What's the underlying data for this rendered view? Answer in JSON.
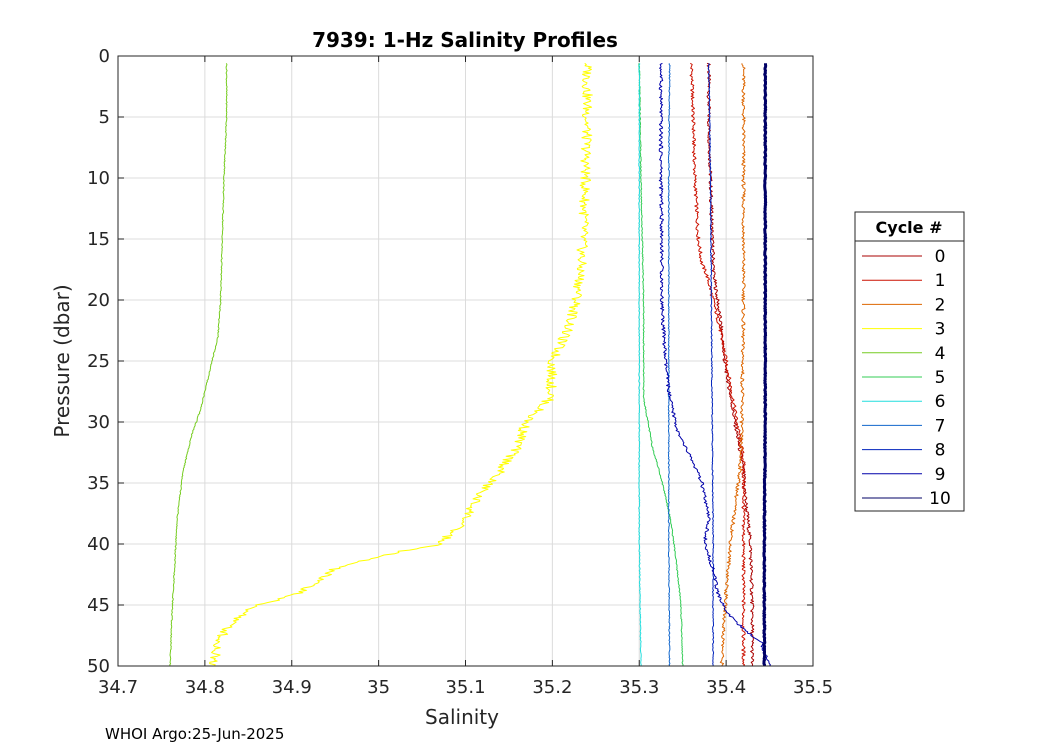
{
  "footer": {
    "credit": "WHOI Argo:25-Jun-2025"
  },
  "chart_data": {
    "type": "line",
    "title": "7939: 1-Hz Salinity Profiles",
    "xlabel": "Salinity",
    "ylabel": "Pressure (dbar)",
    "xlim": [
      34.7,
      35.5
    ],
    "ylim": [
      0,
      50
    ],
    "y_reversed": true,
    "grid": true,
    "xticks": [
      "34.7",
      "34.8",
      "34.9",
      "35",
      "35.1",
      "35.2",
      "35.3",
      "35.4",
      "35.5"
    ],
    "yticks": [
      "0",
      "5",
      "10",
      "15",
      "20",
      "25",
      "30",
      "35",
      "40",
      "45",
      "50"
    ],
    "legend": {
      "title": "Cycle #",
      "placement": "outside-right"
    },
    "series": [
      {
        "name": "0",
        "color": "#aa0000",
        "points": [
          [
            35.38,
            0.6
          ],
          [
            35.38,
            5
          ],
          [
            35.382,
            10
          ],
          [
            35.384,
            15
          ],
          [
            35.386,
            18
          ],
          [
            35.39,
            20
          ],
          [
            35.394,
            22
          ],
          [
            35.398,
            25
          ],
          [
            35.403,
            27
          ],
          [
            35.41,
            30
          ],
          [
            35.415,
            32
          ],
          [
            35.42,
            34
          ],
          [
            35.422,
            36
          ],
          [
            35.425,
            38
          ],
          [
            35.428,
            40
          ],
          [
            35.43,
            45
          ],
          [
            35.43,
            50
          ]
        ]
      },
      {
        "name": "1",
        "color": "#cc1100",
        "points": [
          [
            35.36,
            0.6
          ],
          [
            35.362,
            5
          ],
          [
            35.364,
            10
          ],
          [
            35.368,
            15
          ],
          [
            35.372,
            17
          ],
          [
            35.378,
            18
          ],
          [
            35.385,
            20
          ],
          [
            35.392,
            22
          ],
          [
            35.4,
            25
          ],
          [
            35.405,
            27
          ],
          [
            35.41,
            29
          ],
          [
            35.415,
            31
          ],
          [
            35.42,
            33
          ],
          [
            35.42,
            36
          ],
          [
            35.42,
            40
          ],
          [
            35.42,
            44
          ],
          [
            35.42,
            50
          ]
        ]
      },
      {
        "name": "2",
        "color": "#dd6600",
        "points": [
          [
            35.42,
            0.6
          ],
          [
            35.42,
            10
          ],
          [
            35.42,
            20
          ],
          [
            35.418,
            30
          ],
          [
            35.416,
            34
          ],
          [
            35.41,
            37
          ],
          [
            35.405,
            40
          ],
          [
            35.4,
            44
          ],
          [
            35.397,
            47
          ],
          [
            35.395,
            50
          ]
        ]
      },
      {
        "name": "3",
        "color": "#ffff00",
        "points": [
          [
            35.24,
            0.6
          ],
          [
            35.24,
            5
          ],
          [
            35.238,
            10
          ],
          [
            35.236,
            14
          ],
          [
            35.232,
            18
          ],
          [
            35.228,
            20
          ],
          [
            35.22,
            22
          ],
          [
            35.2,
            25
          ],
          [
            35.198,
            28
          ],
          [
            35.17,
            30
          ],
          [
            35.16,
            32
          ],
          [
            35.14,
            34
          ],
          [
            35.115,
            36
          ],
          [
            35.1,
            38
          ],
          [
            35.07,
            40
          ],
          [
            35.0,
            41
          ],
          [
            34.95,
            42
          ],
          [
            34.91,
            44
          ],
          [
            34.86,
            45
          ],
          [
            34.83,
            46.5
          ],
          [
            34.815,
            48
          ],
          [
            34.81,
            50
          ]
        ]
      },
      {
        "name": "4",
        "color": "#77cc22",
        "points": [
          [
            34.825,
            0.6
          ],
          [
            34.825,
            5
          ],
          [
            34.822,
            10
          ],
          [
            34.82,
            15
          ],
          [
            34.818,
            20
          ],
          [
            34.815,
            23
          ],
          [
            34.805,
            26
          ],
          [
            34.795,
            29
          ],
          [
            34.785,
            31
          ],
          [
            34.775,
            34
          ],
          [
            34.768,
            38
          ],
          [
            34.765,
            42
          ],
          [
            34.762,
            46
          ],
          [
            34.76,
            50
          ]
        ]
      },
      {
        "name": "5",
        "color": "#33cc55",
        "points": [
          [
            35.3,
            0.6
          ],
          [
            35.302,
            10
          ],
          [
            35.305,
            20
          ],
          [
            35.305,
            28
          ],
          [
            35.31,
            30
          ],
          [
            35.315,
            32
          ],
          [
            35.323,
            34
          ],
          [
            35.33,
            36
          ],
          [
            35.336,
            38
          ],
          [
            35.34,
            40
          ],
          [
            35.345,
            43
          ],
          [
            35.348,
            45
          ],
          [
            35.35,
            50
          ]
        ]
      },
      {
        "name": "6",
        "color": "#22dddd",
        "points": [
          [
            35.3,
            0.6
          ],
          [
            35.3,
            10
          ],
          [
            35.3,
            20
          ],
          [
            35.3,
            30
          ],
          [
            35.3,
            40
          ],
          [
            35.302,
            50
          ]
        ]
      },
      {
        "name": "7",
        "color": "#1166cc",
        "points": [
          [
            35.335,
            0.6
          ],
          [
            35.334,
            10
          ],
          [
            35.334,
            20
          ],
          [
            35.334,
            30
          ],
          [
            35.334,
            40
          ],
          [
            35.335,
            50
          ]
        ]
      },
      {
        "name": "8",
        "color": "#0022bb",
        "points": [
          [
            35.38,
            0.6
          ],
          [
            35.382,
            10
          ],
          [
            35.383,
            20
          ],
          [
            35.384,
            30
          ],
          [
            35.385,
            40
          ],
          [
            35.385,
            50
          ]
        ]
      },
      {
        "name": "9",
        "color": "#0000aa",
        "points": [
          [
            35.325,
            0.6
          ],
          [
            35.325,
            5
          ],
          [
            35.325,
            10
          ],
          [
            35.326,
            15
          ],
          [
            35.326,
            20
          ],
          [
            35.33,
            25
          ],
          [
            35.335,
            28
          ],
          [
            35.345,
            31
          ],
          [
            35.36,
            33
          ],
          [
            35.372,
            35
          ],
          [
            35.38,
            38
          ],
          [
            35.375,
            40
          ],
          [
            35.385,
            42
          ],
          [
            35.39,
            44
          ],
          [
            35.4,
            45.5
          ],
          [
            35.42,
            47
          ],
          [
            35.44,
            48
          ],
          [
            35.45,
            50
          ]
        ]
      },
      {
        "name": "10",
        "color": "#000066",
        "points": [
          [
            35.445,
            0.6
          ],
          [
            35.445,
            10
          ],
          [
            35.445,
            20
          ],
          [
            35.445,
            30
          ],
          [
            35.444,
            40
          ],
          [
            35.444,
            50
          ]
        ]
      }
    ]
  }
}
